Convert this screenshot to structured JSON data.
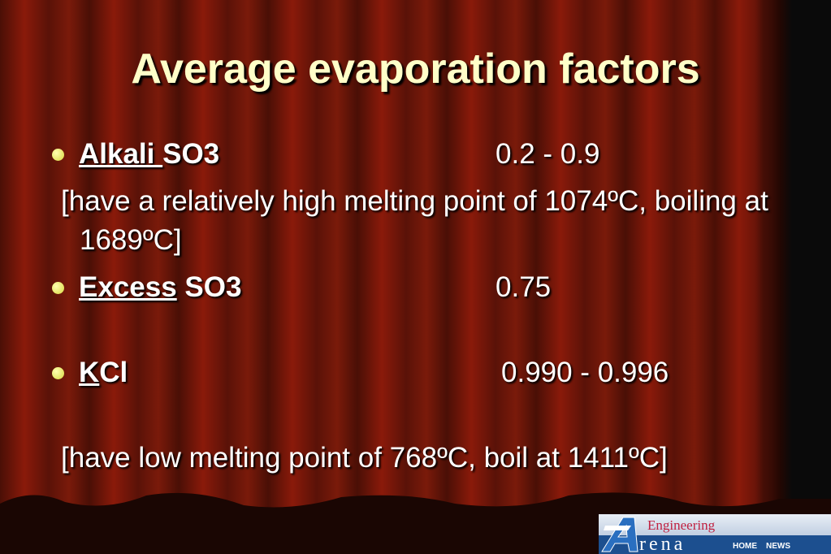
{
  "title": "Average evaporation factors",
  "items": [
    {
      "label_underlined": "Alkali ",
      "label_rest": "SO3",
      "value": "0.2 - 0.9",
      "note": "[have a relatively high melting point of 1074ºC, boiling at 1689ºC]"
    },
    {
      "label_underlined": "Excess",
      "label_rest": " SO3",
      "value": "0.75"
    },
    {
      "label_underlined": "K",
      "label_rest": "Cl",
      "value": "0.990 - 0.996",
      "note": "[have low melting point of 768ºC, boil at 1411ºC]"
    }
  ],
  "logo": {
    "top": "Engineering",
    "word": "rena",
    "links": [
      "HOME",
      "NEWS"
    ]
  }
}
